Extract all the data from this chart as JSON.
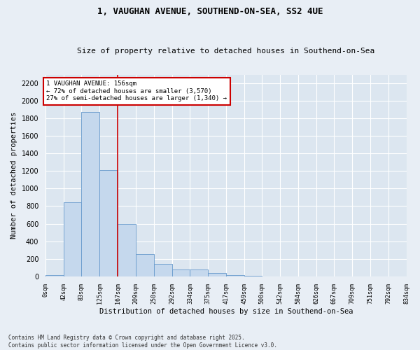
{
  "title": "1, VAUGHAN AVENUE, SOUTHEND-ON-SEA, SS2 4UE",
  "subtitle": "Size of property relative to detached houses in Southend-on-Sea",
  "xlabel": "Distribution of detached houses by size in Southend-on-Sea",
  "ylabel": "Number of detached properties",
  "bar_color": "#c5d8ed",
  "bar_edge_color": "#6699cc",
  "fig_bg_color": "#e8eef5",
  "axes_bg_color": "#dce6f0",
  "grid_color": "#ffffff",
  "annotation_text": "1 VAUGHAN AVENUE: 156sqm\n← 72% of detached houses are smaller (3,570)\n27% of semi-detached houses are larger (1,340) →",
  "vline_x": 167,
  "vline_color": "#cc0000",
  "annotation_box_color": "#cc0000",
  "bins": [
    0,
    42,
    83,
    125,
    167,
    209,
    250,
    292,
    334,
    375,
    417,
    459,
    500,
    542,
    584,
    626,
    667,
    709,
    751,
    792,
    834
  ],
  "bar_heights": [
    10,
    840,
    1870,
    1210,
    600,
    255,
    145,
    75,
    75,
    40,
    10,
    5,
    0,
    0,
    0,
    0,
    0,
    0,
    0,
    0
  ],
  "ylim": [
    0,
    2300
  ],
  "yticks": [
    0,
    200,
    400,
    600,
    800,
    1000,
    1200,
    1400,
    1600,
    1800,
    2000,
    2200
  ],
  "footnote": "Contains HM Land Registry data © Crown copyright and database right 2025.\nContains public sector information licensed under the Open Government Licence v3.0.",
  "figsize": [
    6.0,
    5.0
  ],
  "dpi": 100
}
